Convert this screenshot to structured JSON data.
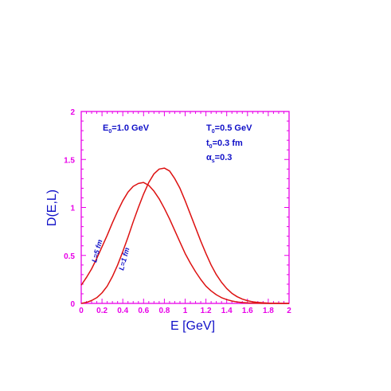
{
  "colors": {
    "frame": "#e800e8",
    "text": "#1010c8",
    "curve": "#dd1111",
    "background": "#ffffff"
  },
  "chart_data": {
    "type": "line",
    "title": "",
    "xlabel": "E [GeV]",
    "ylabel": "D(E,L)",
    "xlim": [
      0,
      2
    ],
    "ylim": [
      0,
      2
    ],
    "xticks": [
      "0",
      "0.2",
      "0.4",
      "0.6",
      "0.8",
      "1",
      "1.2",
      "1.4",
      "1.6",
      "1.8",
      "2"
    ],
    "yticks": [
      "0",
      "0.5",
      "1",
      "1.5",
      "2"
    ],
    "grid": false,
    "series": [
      {
        "name": "L=5 fm",
        "x": [
          0.0,
          0.05,
          0.1,
          0.15,
          0.2,
          0.25,
          0.3,
          0.35,
          0.4,
          0.45,
          0.5,
          0.55,
          0.6,
          0.65,
          0.7,
          0.75,
          0.8,
          0.85,
          0.9,
          0.95,
          1.0,
          1.05,
          1.1,
          1.15,
          1.2,
          1.25,
          1.3,
          1.35,
          1.4,
          1.45,
          1.5,
          1.55,
          1.6,
          1.65,
          1.7,
          1.75,
          1.8,
          1.85,
          1.9,
          1.95,
          2.0
        ],
        "y": [
          0.19,
          0.27,
          0.36,
          0.47,
          0.59,
          0.71,
          0.84,
          0.96,
          1.07,
          1.16,
          1.22,
          1.25,
          1.26,
          1.23,
          1.17,
          1.09,
          0.99,
          0.88,
          0.76,
          0.64,
          0.52,
          0.42,
          0.33,
          0.25,
          0.18,
          0.13,
          0.09,
          0.06,
          0.04,
          0.025,
          0.015,
          0.009,
          0.005,
          0.003,
          0.002,
          0.001,
          0.0,
          0.0,
          0.0,
          0.0,
          0.0
        ]
      },
      {
        "name": "L=1 fm",
        "x": [
          0.0,
          0.05,
          0.1,
          0.15,
          0.2,
          0.25,
          0.3,
          0.35,
          0.4,
          0.45,
          0.5,
          0.55,
          0.6,
          0.65,
          0.7,
          0.75,
          0.8,
          0.85,
          0.9,
          0.95,
          1.0,
          1.05,
          1.1,
          1.15,
          1.2,
          1.25,
          1.3,
          1.35,
          1.4,
          1.45,
          1.5,
          1.55,
          1.6,
          1.65,
          1.7,
          1.75,
          1.8,
          1.85,
          1.9,
          1.95,
          2.0
        ],
        "y": [
          0.0,
          0.01,
          0.03,
          0.06,
          0.11,
          0.18,
          0.28,
          0.4,
          0.54,
          0.69,
          0.85,
          1.0,
          1.14,
          1.26,
          1.35,
          1.4,
          1.41,
          1.38,
          1.3,
          1.2,
          1.07,
          0.93,
          0.79,
          0.65,
          0.52,
          0.4,
          0.3,
          0.22,
          0.155,
          0.105,
          0.07,
          0.045,
          0.028,
          0.017,
          0.01,
          0.006,
          0.003,
          0.002,
          0.001,
          0.0,
          0.0
        ]
      }
    ],
    "annotations": {
      "e0": {
        "main": "E",
        "sub": "0",
        "rest": "=1.0 GeV"
      },
      "t0_temp": {
        "main": "T",
        "sub": "0",
        "rest": "=0.5 GeV"
      },
      "t0_time": {
        "main": "t",
        "sub": "0",
        "rest": "=0.3 fm"
      },
      "alpha": {
        "main": "α",
        "sub": "s",
        "rest": "=0.3"
      }
    }
  }
}
